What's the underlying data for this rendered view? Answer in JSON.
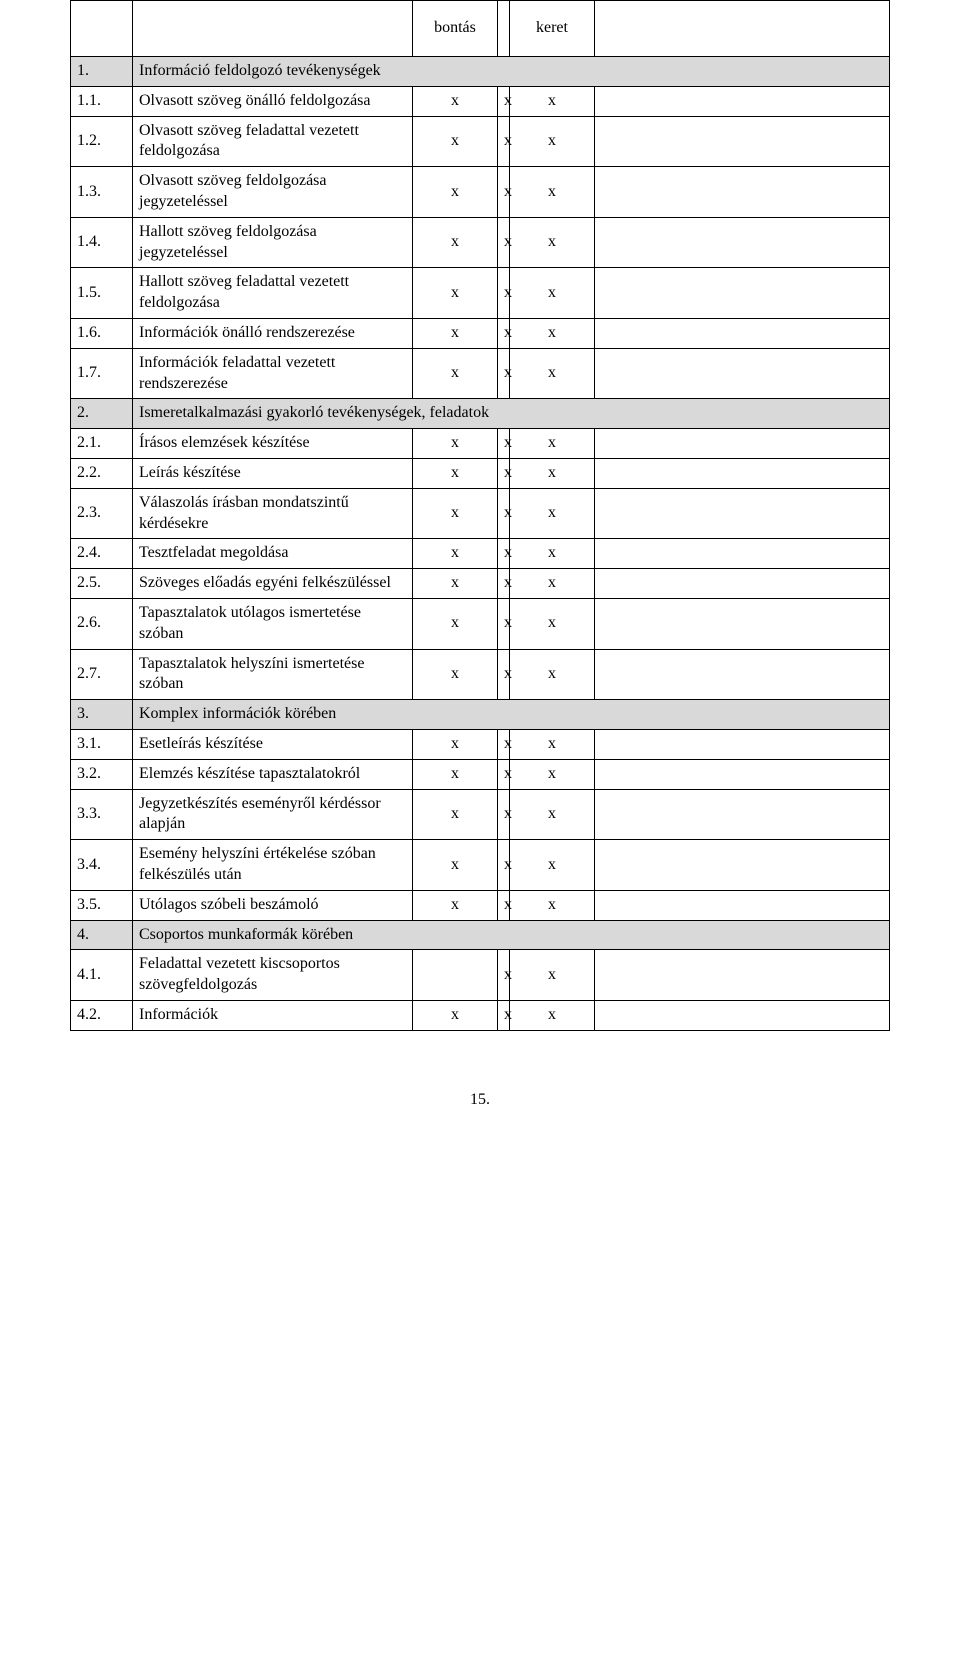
{
  "columns": {
    "bontas_label": "bontás",
    "keret_label": "keret"
  },
  "colors": {
    "border": "#000000",
    "section_bg": "#d9d9d9",
    "text": "#000000",
    "page_bg": "#ffffff"
  },
  "typography": {
    "font_family": "Times New Roman",
    "font_size_pt": 12,
    "line_height": 1.3
  },
  "page_number": "15.",
  "rows": [
    {
      "type": "header"
    },
    {
      "type": "section",
      "num": "1.",
      "desc": "Információ feldolgozó tevékenységek"
    },
    {
      "type": "item",
      "num": "1.1.",
      "desc": "Olvasott szöveg önálló feldolgozása",
      "bontas": "x",
      "spacer": "x",
      "keret": "x"
    },
    {
      "type": "item",
      "num": "1.2.",
      "desc": "Olvasott szöveg feladattal vezetett feldolgozása",
      "bontas": "x",
      "spacer": "x",
      "keret": "x"
    },
    {
      "type": "item",
      "num": "1.3.",
      "desc": "Olvasott szöveg feldolgozása jegyzeteléssel",
      "bontas": "x",
      "spacer": "x",
      "keret": "x"
    },
    {
      "type": "item",
      "num": "1.4.",
      "desc": "Hallott szöveg feldolgozása jegyzeteléssel",
      "bontas": "x",
      "spacer": "x",
      "keret": "x"
    },
    {
      "type": "item",
      "num": "1.5.",
      "desc": "Hallott szöveg feladattal vezetett feldolgozása",
      "bontas": "x",
      "spacer": "x",
      "keret": "x"
    },
    {
      "type": "item",
      "num": "1.6.",
      "desc": "Információk önálló rendszerezése",
      "bontas": "x",
      "spacer": "x",
      "keret": "x"
    },
    {
      "type": "item",
      "num": "1.7.",
      "desc": "Információk feladattal vezetett rendszerezése",
      "bontas": "x",
      "spacer": "x",
      "keret": "x"
    },
    {
      "type": "section",
      "num": "2.",
      "desc": "Ismeretalkalmazási gyakorló tevékenységek, feladatok"
    },
    {
      "type": "item",
      "num": "2.1.",
      "desc": "Írásos elemzések készítése",
      "bontas": "x",
      "spacer": "x",
      "keret": "x"
    },
    {
      "type": "item",
      "num": "2.2.",
      "desc": "Leírás készítése",
      "bontas": "x",
      "spacer": "x",
      "keret": "x"
    },
    {
      "type": "item",
      "num": "2.3.",
      "desc": "Válaszolás írásban mondatszintű kérdésekre",
      "bontas": "x",
      "spacer": "x",
      "keret": "x"
    },
    {
      "type": "item",
      "num": "2.4.",
      "desc": "Tesztfeladat megoldása",
      "bontas": "x",
      "spacer": "x",
      "keret": "x"
    },
    {
      "type": "item",
      "num": "2.5.",
      "desc": "Szöveges előadás egyéni felkészüléssel",
      "bontas": "x",
      "spacer": "x",
      "keret": "x"
    },
    {
      "type": "item",
      "num": "2.6.",
      "desc": "Tapasztalatok utólagos ismertetése szóban",
      "bontas": "x",
      "spacer": "x",
      "keret": "x"
    },
    {
      "type": "item",
      "num": "2.7.",
      "desc": "Tapasztalatok helyszíni ismertetése szóban",
      "bontas": "x",
      "spacer": "x",
      "keret": "x"
    },
    {
      "type": "section",
      "num": "3.",
      "desc": "Komplex információk körében"
    },
    {
      "type": "item",
      "num": "3.1.",
      "desc": "Esetleírás készítése",
      "bontas": "x",
      "spacer": "x",
      "keret": "x"
    },
    {
      "type": "item",
      "num": "3.2.",
      "desc": "Elemzés készítése tapasztalatokról",
      "bontas": "x",
      "spacer": "x",
      "keret": "x"
    },
    {
      "type": "item",
      "num": "3.3.",
      "desc": "Jegyzetkészítés eseményről kérdéssor alapján",
      "bontas": "x",
      "spacer": "x",
      "keret": "x"
    },
    {
      "type": "item",
      "num": "3.4.",
      "desc": "Esemény helyszíni értékelése szóban felkészülés után",
      "bontas": "x",
      "spacer": "x",
      "keret": "x"
    },
    {
      "type": "item",
      "num": "3.5.",
      "desc": "Utólagos szóbeli beszámoló",
      "bontas": "x",
      "spacer": "x",
      "keret": "x"
    },
    {
      "type": "section",
      "num": "4.",
      "desc": "Csoportos munkaformák körében"
    },
    {
      "type": "item",
      "num": "4.1.",
      "desc": "Feladattal vezetett kiscsoportos szövegfeldolgozás",
      "bontas": "",
      "spacer": "x",
      "keret": "x"
    },
    {
      "type": "item",
      "num": "4.2.",
      "desc": "Információk",
      "bontas": "x",
      "spacer": "x",
      "keret": "x"
    }
  ]
}
